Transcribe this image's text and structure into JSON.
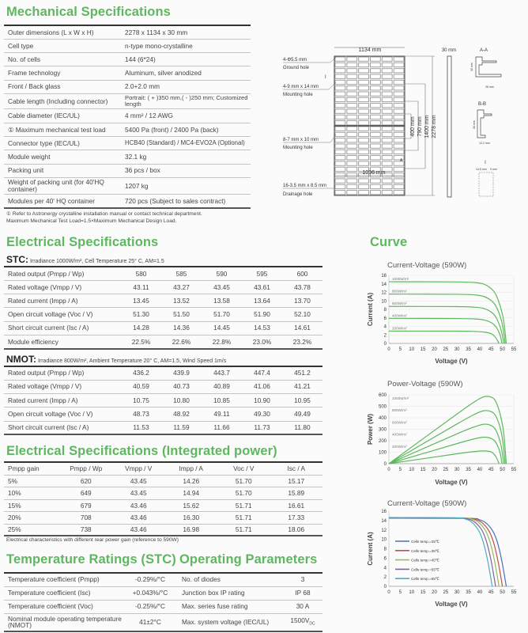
{
  "mechanical": {
    "title": "Mechanical Specifications",
    "rows": [
      [
        "Outer dimensions (L x W x H)",
        "2278 x 1134 x 30 mm"
      ],
      [
        "Cell type",
        "n-type mono-crystalline"
      ],
      [
        "No. of cells",
        "144 (6*24)"
      ],
      [
        "Frame technology",
        "Aluminum, silver anodized"
      ],
      [
        "Front / Back glass",
        "2.0+2.0 mm"
      ],
      [
        "Cable length (Including connector)",
        "Portrait: ( + )350 mm,( - )250 mm; Customized length"
      ],
      [
        "Cable diameter (IEC/UL)",
        "4 mm² / 12 AWG"
      ],
      [
        "① Maximum mechanical test load",
        "5400 Pa (front) / 2400 Pa (back)"
      ],
      [
        "Connector type (IEC/UL)",
        "HCB40 (Standard) / MC4-EVO2A (Optional)"
      ],
      [
        "Module weight",
        "32.1 kg"
      ],
      [
        "Packing unit",
        "36 pcs / box"
      ],
      [
        "Weight of packing unit (for 40'HQ container)",
        "1207 kg"
      ],
      [
        "Modules per 40' HQ container",
        "720 pcs (Subject to sales contract)"
      ]
    ],
    "footnote1": "① Refer to Astronergy crystalline installation manual or contact technical department.",
    "footnote2": "Maximum Mechanical Test Load=1.5×Maximum Mechanical Design Load."
  },
  "drawing": {
    "width_label": "1134 mm",
    "ground_hole_spec": "4-Φ5.5 mm",
    "ground_hole": "Ground hole",
    "detail_marker": "I",
    "mount1_spec": "4-9 mm x 14 mm",
    "mount1": "Mounting hole",
    "mount2_spec": "8-7 mm x 10 mm",
    "mount2": "Mounting hole",
    "drain_spec": "16-3.5 mm x 8.5 mm",
    "drain": "Drainage hole",
    "inner_width": "1096 mm",
    "dim_400": "400 mm",
    "dim_790": "790 mm",
    "dim_1400": "1400 mm",
    "dim_2278": "2278 mm",
    "thickness": "30 mm",
    "section_aa": "A-A",
    "aa_h": "30 mm",
    "aa_w": "26 mm",
    "section_bb": "B-B",
    "bb_h": "30 mm",
    "bb_w": "12.2 mm",
    "section_i": "I",
    "i_w1": "14.5 mm",
    "i_w2": "9 mm",
    "marker_a": "A",
    "marker_b": "B"
  },
  "electrical": {
    "title": "Electrical Specifications",
    "stc_label": "STC:",
    "stc_cond": "Irradiance 1000W/m², Cell Temperature 25° C, AM=1.5",
    "stc_rows": [
      [
        "Rated output (Pmpp / Wp)",
        "580",
        "585",
        "590",
        "595",
        "600"
      ],
      [
        "Rated voltage (Vmpp / V)",
        "43.11",
        "43.27",
        "43.45",
        "43.61",
        "43.78"
      ],
      [
        "Rated current (Impp / A)",
        "13.45",
        "13.52",
        "13.58",
        "13.64",
        "13.70"
      ],
      [
        "Open circuit voltage (Voc / V)",
        "51.30",
        "51.50",
        "51.70",
        "51.90",
        "52.10"
      ],
      [
        "Short circuit current (Isc / A)",
        "14.28",
        "14.36",
        "14.45",
        "14.53",
        "14.61"
      ],
      [
        "Module efficiency",
        "22.5%",
        "22.6%",
        "22.8%",
        "23.0%",
        "23.2%"
      ]
    ],
    "nmot_label": "NMOT:",
    "nmot_cond": "Irradiance 800W/m², Ambient Temperature 20° C, AM=1.5, Wind Speed 1m/s",
    "nmot_rows": [
      [
        "Rated output (Pmpp / Wp)",
        "436.2",
        "439.9",
        "443.7",
        "447.4",
        "451.2"
      ],
      [
        "Rated voltage (Vmpp / V)",
        "40.59",
        "40.73",
        "40.89",
        "41.06",
        "41.21"
      ],
      [
        "Rated current (Impp / A)",
        "10.75",
        "10.80",
        "10.85",
        "10.90",
        "10.95"
      ],
      [
        "Open circuit voltage (Voc / V)",
        "48.73",
        "48.92",
        "49.11",
        "49.30",
        "49.49"
      ],
      [
        "Short circuit current (Isc / A)",
        "11.53",
        "11.59",
        "11.66",
        "11.73",
        "11.80"
      ]
    ]
  },
  "integrated": {
    "title": "Electrical Specifications (Integrated power)",
    "header": [
      "Pmpp gain",
      "Pmpp / Wp",
      "Vmpp / V",
      "Impp / A",
      "Voc / V",
      "Isc / A"
    ],
    "rows": [
      [
        "5%",
        "620",
        "43.45",
        "14.26",
        "51.70",
        "15.17"
      ],
      [
        "10%",
        "649",
        "43.45",
        "14.94",
        "51.70",
        "15.89"
      ],
      [
        "15%",
        "679",
        "43.46",
        "15.62",
        "51.71",
        "16.61"
      ],
      [
        "20%",
        "708",
        "43.46",
        "16.30",
        "51.71",
        "17.33"
      ],
      [
        "25%",
        "738",
        "43.46",
        "16.98",
        "51.71",
        "18.06"
      ]
    ],
    "footnote": "Electrical characteristics with different rear power gain (reference to 590W)"
  },
  "temperature": {
    "title": "Temperature Ratings (STC)",
    "rows": [
      [
        "Temperature coefficient (Pmpp)",
        "-0.29%/°C"
      ],
      [
        "Temperature coefficient (Isc)",
        "+0.043%/°C"
      ],
      [
        "Temperature coefficient (Voc)",
        "-0.25%/°C"
      ],
      [
        "Nominal module operating temperature (NMOT)",
        "41±2°C"
      ]
    ]
  },
  "operating": {
    "title": "Operating Parameters",
    "rows": [
      [
        "No. of diodes",
        "3"
      ],
      [
        "Junction box IP rating",
        "IP 68"
      ],
      [
        "Max. series fuse rating",
        "30 A"
      ],
      [
        "Max. system voltage (IEC/UL)",
        "1500V",
        "DC"
      ]
    ]
  },
  "curve_title": "Curve",
  "colors": {
    "heading": "#5fb760",
    "curve": "#5cb85c"
  },
  "chart_data": [
    {
      "type": "line",
      "title": "Current-Voltage  (590W)",
      "xlabel": "Voltage (V)",
      "ylabel": "Current (A)",
      "xlim": [
        0,
        55
      ],
      "ylim": [
        0,
        16
      ],
      "xticks": [
        0,
        5,
        10,
        15,
        20,
        25,
        30,
        35,
        40,
        45,
        50,
        55
      ],
      "yticks": [
        0,
        2,
        4,
        6,
        8,
        10,
        12,
        14,
        16
      ],
      "grid": true,
      "series": [
        {
          "name": "1000W/m²",
          "color": "#5cb85c",
          "points": [
            [
              0,
              14.5
            ],
            [
              30,
              14.45
            ],
            [
              38,
              14.3
            ],
            [
              42,
              13.9
            ],
            [
              45,
              12.9
            ],
            [
              47,
              11.6
            ],
            [
              49,
              8.8
            ],
            [
              50.5,
              5.5
            ],
            [
              51.7,
              0
            ]
          ]
        },
        {
          "name": "800W/m²",
          "color": "#5cb85c",
          "points": [
            [
              0,
              11.6
            ],
            [
              30,
              11.55
            ],
            [
              38,
              11.4
            ],
            [
              42,
              11.0
            ],
            [
              45,
              10.1
            ],
            [
              47,
              8.9
            ],
            [
              49,
              6.4
            ],
            [
              50.2,
              3.8
            ],
            [
              51.2,
              0
            ]
          ]
        },
        {
          "name": "600W/m²",
          "color": "#5cb85c",
          "points": [
            [
              0,
              8.7
            ],
            [
              30,
              8.65
            ],
            [
              38,
              8.5
            ],
            [
              42,
              8.2
            ],
            [
              45,
              7.4
            ],
            [
              47,
              6.3
            ],
            [
              48.8,
              4.2
            ],
            [
              49.8,
              2.3
            ],
            [
              50.6,
              0
            ]
          ]
        },
        {
          "name": "400W/m²",
          "color": "#5cb85c",
          "points": [
            [
              0,
              5.9
            ],
            [
              30,
              5.85
            ],
            [
              38,
              5.75
            ],
            [
              42,
              5.5
            ],
            [
              45,
              4.9
            ],
            [
              47,
              4.0
            ],
            [
              48.5,
              2.6
            ],
            [
              49.2,
              1.5
            ],
            [
              49.8,
              0
            ]
          ]
        },
        {
          "name": "200W/m²",
          "color": "#5cb85c",
          "points": [
            [
              0,
              2.9
            ],
            [
              30,
              2.88
            ],
            [
              38,
              2.8
            ],
            [
              42,
              2.65
            ],
            [
              45,
              2.3
            ],
            [
              46.5,
              1.7
            ],
            [
              47.6,
              0.9
            ],
            [
              48.5,
              0
            ]
          ]
        }
      ]
    },
    {
      "type": "line",
      "title": "Power-Voltage  (590W)",
      "xlabel": "Voltage (V)",
      "ylabel": "Power (W)",
      "xlim": [
        0,
        55
      ],
      "ylim": [
        0,
        600
      ],
      "xticks": [
        0,
        5,
        10,
        15,
        20,
        25,
        30,
        35,
        40,
        45,
        50,
        55
      ],
      "yticks": [
        0,
        100,
        200,
        300,
        400,
        500,
        600
      ],
      "grid": true,
      "series": [
        {
          "name": "1000W/m²",
          "color": "#5cb85c",
          "points": [
            [
              0,
              0
            ],
            [
              30,
              433
            ],
            [
              38,
              543
            ],
            [
              42,
              584
            ],
            [
              45,
              580
            ],
            [
              47,
              545
            ],
            [
              49,
              431
            ],
            [
              50.5,
              278
            ],
            [
              51.7,
              0
            ]
          ]
        },
        {
          "name": "800W/m²",
          "color": "#5cb85c",
          "points": [
            [
              0,
              0
            ],
            [
              30,
              346
            ],
            [
              38,
              433
            ],
            [
              42,
              462
            ],
            [
              45,
              454
            ],
            [
              47,
              418
            ],
            [
              49,
              314
            ],
            [
              50.2,
              191
            ],
            [
              51.2,
              0
            ]
          ]
        },
        {
          "name": "600W/m²",
          "color": "#5cb85c",
          "points": [
            [
              0,
              0
            ],
            [
              30,
              260
            ],
            [
              38,
              323
            ],
            [
              42,
              344
            ],
            [
              45,
              333
            ],
            [
              47,
              296
            ],
            [
              48.8,
              205
            ],
            [
              49.8,
              115
            ],
            [
              50.6,
              0
            ]
          ]
        },
        {
          "name": "400W/m²",
          "color": "#5cb85c",
          "points": [
            [
              0,
              0
            ],
            [
              30,
              175
            ],
            [
              38,
              218
            ],
            [
              42,
              231
            ],
            [
              45,
              220
            ],
            [
              47,
              188
            ],
            [
              48.5,
              126
            ],
            [
              49.2,
              74
            ],
            [
              49.8,
              0
            ]
          ]
        },
        {
          "name": "200W/m²",
          "color": "#5cb85c",
          "points": [
            [
              0,
              0
            ],
            [
              30,
              86
            ],
            [
              38,
              106
            ],
            [
              42,
              111
            ],
            [
              45,
              103
            ],
            [
              46.5,
              79
            ],
            [
              47.6,
              43
            ],
            [
              48.5,
              0
            ]
          ]
        }
      ]
    },
    {
      "type": "line",
      "title": "Current-Voltage  (590W)",
      "xlabel": "Voltage (V)",
      "ylabel": "Current (A)",
      "xlim": [
        0,
        55
      ],
      "ylim": [
        0,
        16
      ],
      "xticks": [
        0,
        5,
        10,
        15,
        20,
        25,
        30,
        35,
        40,
        45,
        50,
        55
      ],
      "yticks": [
        0,
        2,
        4,
        6,
        8,
        10,
        12,
        14,
        16
      ],
      "grid": false,
      "legend": "left",
      "series": [
        {
          "name": "Cells temp.=25℃",
          "color": "#4a6fb5",
          "points": [
            [
              0,
              14.5
            ],
            [
              34.7,
              14.45
            ],
            [
              39.7,
              14.2
            ],
            [
              42.7,
              13.5
            ],
            [
              45.7,
              11.8
            ],
            [
              47.7,
              9.5
            ],
            [
              49.7,
              5.5
            ],
            [
              51.7,
              0
            ]
          ]
        },
        {
          "name": "Cells temp.=35℃",
          "color": "#c0504d",
          "points": [
            [
              0,
              14.55
            ],
            [
              33,
              14.5
            ],
            [
              38,
              14.25
            ],
            [
              41,
              13.55
            ],
            [
              44,
              11.85
            ],
            [
              46,
              9.5
            ],
            [
              48,
              5.5
            ],
            [
              50,
              0
            ]
          ]
        },
        {
          "name": "Cells temp.=45℃",
          "color": "#9bbb59",
          "points": [
            [
              0,
              14.6
            ],
            [
              31.5,
              14.55
            ],
            [
              36.5,
              14.3
            ],
            [
              39.5,
              13.6
            ],
            [
              42.5,
              11.9
            ],
            [
              44.5,
              9.5
            ],
            [
              46.5,
              5.5
            ],
            [
              48.5,
              0
            ]
          ]
        },
        {
          "name": "Cells temp.=55℃",
          "color": "#8064a2",
          "points": [
            [
              0,
              14.6
            ],
            [
              30,
              14.55
            ],
            [
              35,
              14.3
            ],
            [
              38,
              13.6
            ],
            [
              41,
              11.9
            ],
            [
              43,
              9.5
            ],
            [
              45,
              5.5
            ],
            [
              47,
              0
            ]
          ]
        },
        {
          "name": "Cells temp.=65℃",
          "color": "#4bacc6",
          "points": [
            [
              0,
              14.65
            ],
            [
              28.5,
              14.6
            ],
            [
              33.5,
              14.35
            ],
            [
              36.5,
              13.65
            ],
            [
              39.5,
              11.9
            ],
            [
              41.5,
              9.5
            ],
            [
              43.5,
              5.5
            ],
            [
              45.5,
              0
            ]
          ]
        }
      ]
    }
  ]
}
